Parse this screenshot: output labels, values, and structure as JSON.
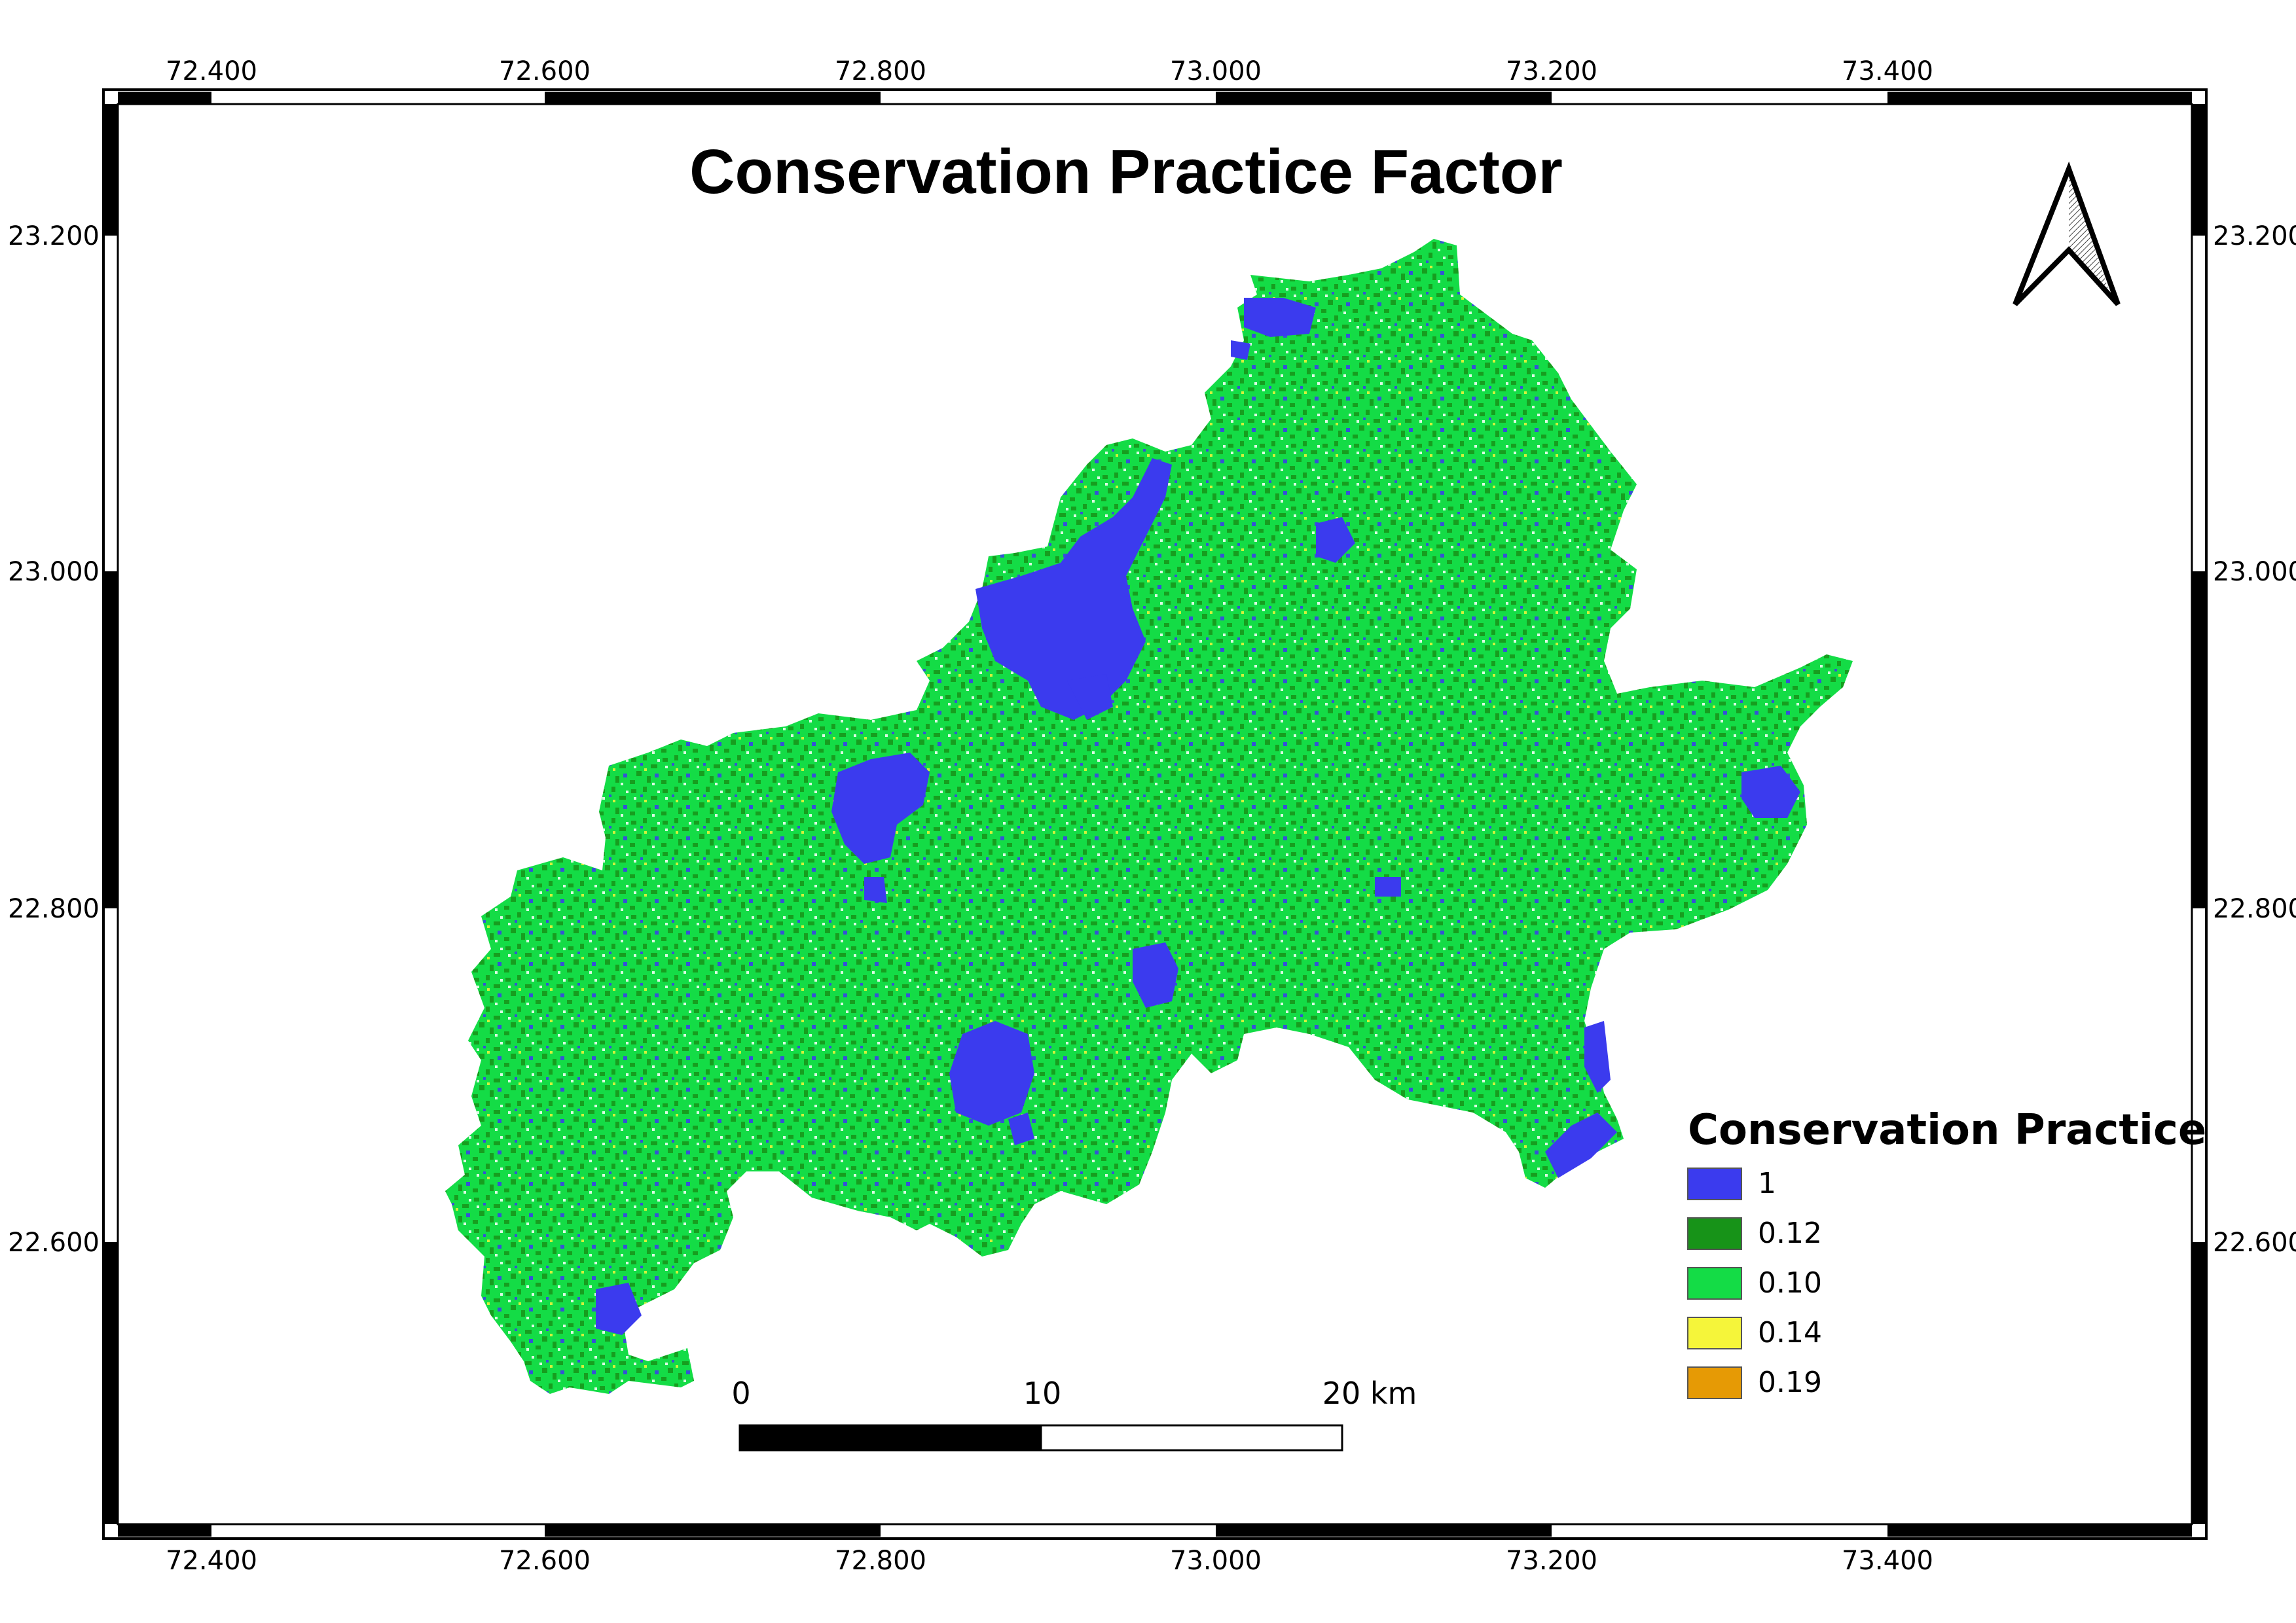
{
  "title": "Conservation Practice Factor",
  "grid": {
    "top_lon_labels": [
      "72.400",
      "72.600",
      "72.800",
      "73.000",
      "73.200",
      "73.400"
    ],
    "bottom_lon_labels": [
      "72.400",
      "72.600",
      "72.800",
      "73.000",
      "73.200",
      "73.400"
    ],
    "left_lat_labels": [
      "23.200",
      "23.000",
      "22.800",
      "22.600"
    ],
    "right_lat_labels": [
      "23.200",
      "23.000",
      "22.800",
      "22.600"
    ]
  },
  "legend": {
    "title": "Conservation Practice",
    "items": [
      {
        "label": "1",
        "color": "#3b3bee"
      },
      {
        "label": "0.12",
        "color": "#179318"
      },
      {
        "label": "0.10",
        "color": "#14dc46"
      },
      {
        "label": "0.14",
        "color": "#f5f53a"
      },
      {
        "label": "0.19",
        "color": "#e69a05"
      }
    ]
  },
  "scale_bar": {
    "labels": [
      "0",
      "10",
      "20 km"
    ]
  },
  "icons": {
    "north_arrow": "north-arrow-icon"
  },
  "colors": {
    "frame": "#000000",
    "background": "#ffffff"
  }
}
